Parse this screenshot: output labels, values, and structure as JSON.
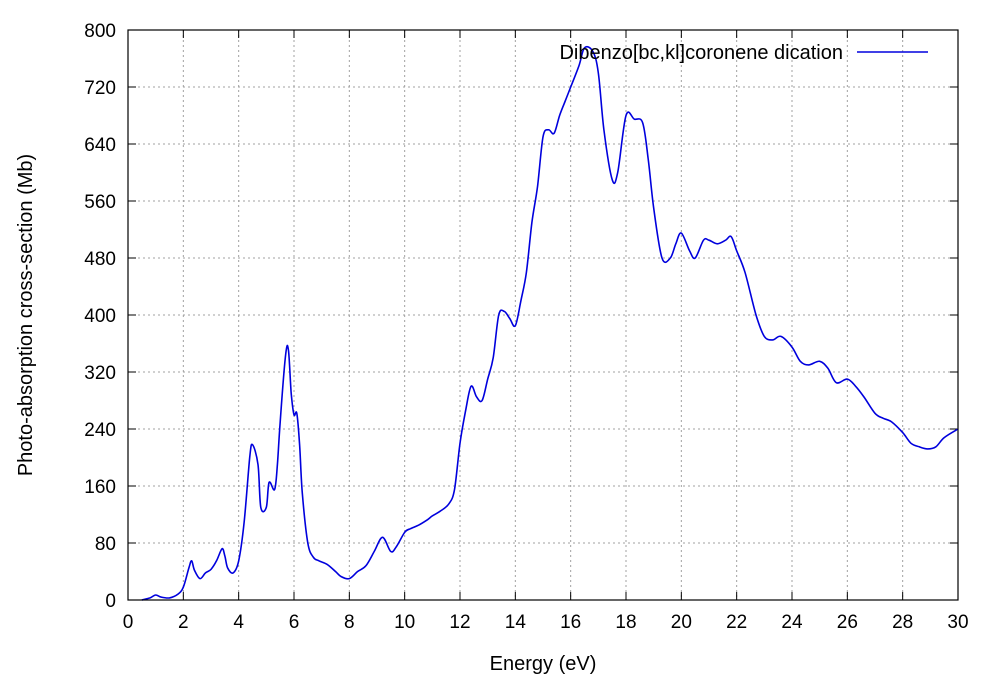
{
  "chart_data": {
    "type": "line",
    "title": "",
    "xlabel": "Energy (eV)",
    "ylabel": "Photo-absorption cross-section (Mb)",
    "xlim": [
      0,
      30
    ],
    "ylim": [
      0,
      800
    ],
    "xticks": [
      0,
      2,
      4,
      6,
      8,
      10,
      12,
      14,
      16,
      18,
      20,
      22,
      24,
      26,
      28,
      30
    ],
    "yticks": [
      0,
      80,
      160,
      240,
      320,
      400,
      480,
      560,
      640,
      720,
      800
    ],
    "grid": true,
    "legend_position": "top-right",
    "series": [
      {
        "name": "Dibenzo[bc,kl]coronene dication",
        "color": "#0000dd",
        "x": [
          0.5,
          0.8,
          1.0,
          1.2,
          1.5,
          1.8,
          2.0,
          2.2,
          2.3,
          2.4,
          2.6,
          2.8,
          3.0,
          3.2,
          3.4,
          3.5,
          3.6,
          3.8,
          4.0,
          4.2,
          4.4,
          4.5,
          4.7,
          4.8,
          5.0,
          5.1,
          5.3,
          5.4,
          5.5,
          5.7,
          5.8,
          5.9,
          6.0,
          6.1,
          6.2,
          6.3,
          6.5,
          6.7,
          6.9,
          7.2,
          7.5,
          7.7,
          8.0,
          8.3,
          8.6,
          8.9,
          9.2,
          9.5,
          9.7,
          10.0,
          10.2,
          10.5,
          10.8,
          11.0,
          11.3,
          11.6,
          11.8,
          12.0,
          12.2,
          12.4,
          12.6,
          12.8,
          13.0,
          13.2,
          13.4,
          13.6,
          13.8,
          14.0,
          14.2,
          14.4,
          14.6,
          14.8,
          15.0,
          15.2,
          15.4,
          15.6,
          15.8,
          16.0,
          16.3,
          16.5,
          16.8,
          17.0,
          17.2,
          17.5,
          17.7,
          18.0,
          18.3,
          18.6,
          18.8,
          19.0,
          19.3,
          19.6,
          19.8,
          20.0,
          20.3,
          20.5,
          20.8,
          21.0,
          21.3,
          21.6,
          21.8,
          22.0,
          22.3,
          22.7,
          23.0,
          23.3,
          23.6,
          24.0,
          24.3,
          24.6,
          25.0,
          25.3,
          25.6,
          26.0,
          26.3,
          26.6,
          27.0,
          27.3,
          27.6,
          28.0,
          28.3,
          28.6,
          28.9,
          29.2,
          29.5,
          30.0
        ],
        "values": [
          0,
          3,
          7,
          4,
          3,
          8,
          18,
          45,
          55,
          42,
          30,
          38,
          43,
          55,
          72,
          62,
          45,
          38,
          55,
          110,
          200,
          218,
          190,
          130,
          130,
          165,
          155,
          190,
          250,
          345,
          350,
          290,
          260,
          262,
          220,
          150,
          80,
          60,
          55,
          50,
          40,
          33,
          30,
          40,
          48,
          68,
          88,
          68,
          75,
          95,
          100,
          105,
          112,
          118,
          125,
          135,
          155,
          220,
          265,
          300,
          285,
          280,
          310,
          340,
          400,
          405,
          395,
          385,
          420,
          460,
          530,
          580,
          650,
          660,
          655,
          680,
          700,
          720,
          750,
          775,
          770,
          740,
          660,
          590,
          600,
          680,
          675,
          670,
          620,
          550,
          480,
          480,
          500,
          515,
          490,
          480,
          505,
          505,
          500,
          505,
          510,
          490,
          460,
          400,
          370,
          365,
          370,
          355,
          335,
          330,
          335,
          325,
          305,
          310,
          300,
          285,
          262,
          255,
          250,
          235,
          220,
          215,
          212,
          215,
          228,
          240
        ]
      }
    ]
  }
}
